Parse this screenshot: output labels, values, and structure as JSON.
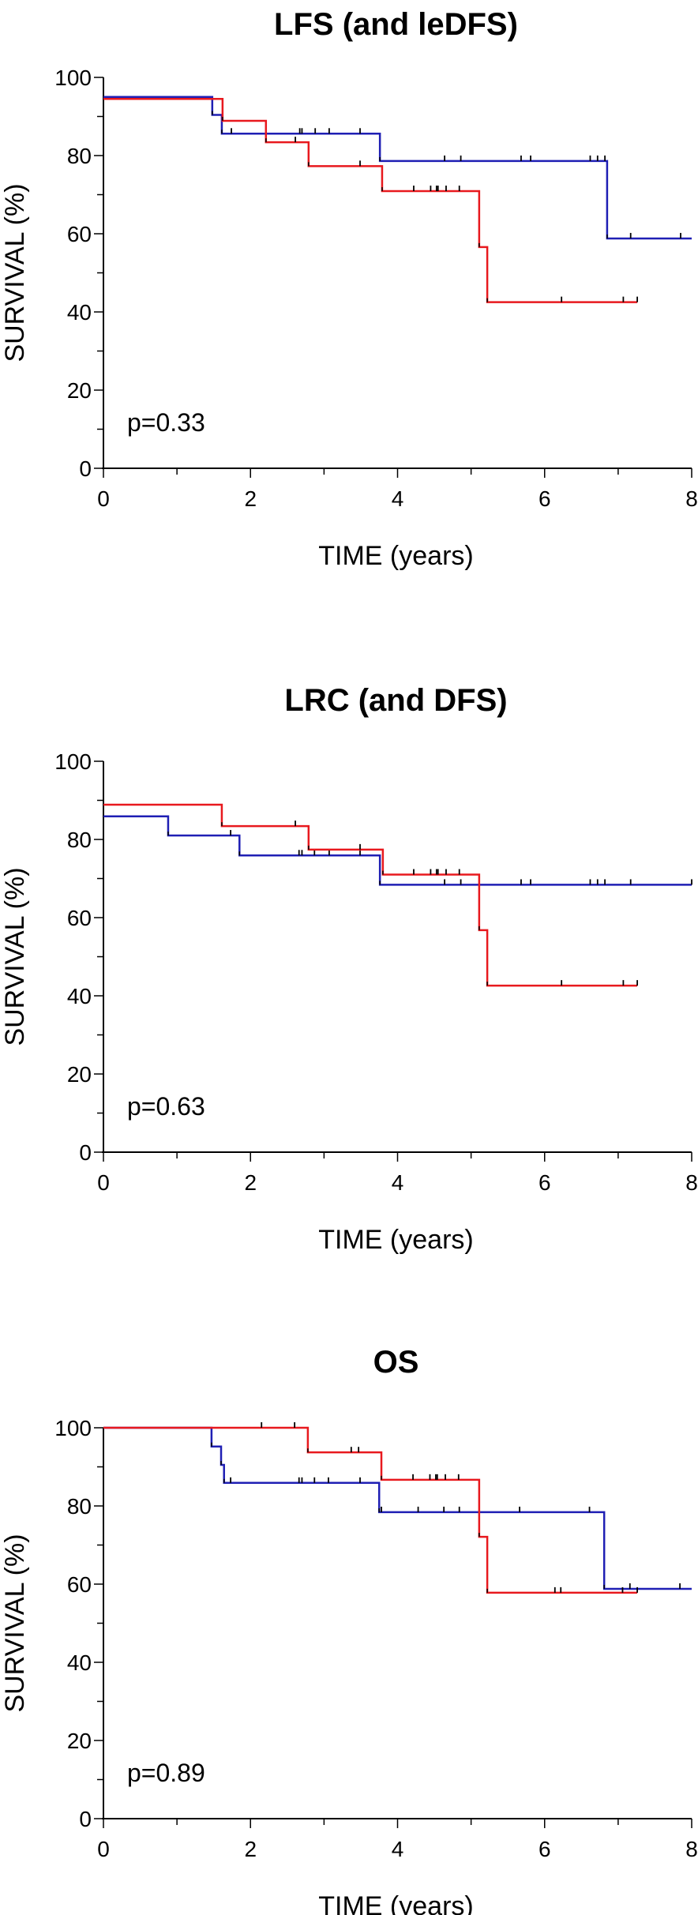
{
  "chart_data": [
    {
      "type": "line",
      "subtype": "kaplan-meier step",
      "title": "LFS (and leDFS)",
      "xlabel": "TIME (years)",
      "ylabel": "SURVIVAL (%)",
      "xlim": [
        0,
        8
      ],
      "ylim": [
        0,
        100
      ],
      "x_ticks": [
        "0",
        "2",
        "4",
        "6",
        "8"
      ],
      "y_ticks": [
        "0",
        "20",
        "40",
        "60",
        "80",
        "100"
      ],
      "x_minor_step": 1,
      "y_minor_step": 10,
      "grid": false,
      "annotation": "p=0.33",
      "series": [
        {
          "name": "blue group",
          "color": "#1f1fb4",
          "steps": [
            [
              0,
              95.0
            ],
            [
              1.48,
              90.4
            ],
            [
              1.61,
              85.6
            ],
            [
              3.76,
              78.6
            ],
            [
              6.85,
              58.8
            ]
          ],
          "end": 8.0,
          "censored": [
            1.74,
            2.67,
            2.7,
            2.88,
            3.07,
            3.49,
            4.64,
            4.86,
            5.68,
            5.81,
            6.62,
            6.72,
            6.82,
            7.17,
            7.85
          ]
        },
        {
          "name": "red group",
          "color": "#e8191e",
          "steps": [
            [
              0,
              94.5
            ],
            [
              1.62,
              88.9
            ],
            [
              2.21,
              83.4
            ],
            [
              2.79,
              77.3
            ],
            [
              3.79,
              70.9
            ],
            [
              5.11,
              56.6
            ],
            [
              5.22,
              42.5
            ]
          ],
          "end": 7.26,
          "censored": [
            2.61,
            3.49,
            4.22,
            4.45,
            4.53,
            4.55,
            4.66,
            4.84,
            6.23,
            7.07,
            7.26
          ]
        }
      ]
    },
    {
      "type": "line",
      "subtype": "kaplan-meier step",
      "title": "LRC (and DFS)",
      "xlabel": "TIME (years)",
      "ylabel": "SURVIVAL (%)",
      "xlim": [
        0,
        8
      ],
      "ylim": [
        0,
        100
      ],
      "x_ticks": [
        "0",
        "2",
        "4",
        "6",
        "8"
      ],
      "y_ticks": [
        "0",
        "20",
        "40",
        "60",
        "80",
        "100"
      ],
      "x_minor_step": 1,
      "y_minor_step": 10,
      "grid": false,
      "annotation": "p=0.63",
      "series": [
        {
          "name": "blue group",
          "color": "#1f1fb4",
          "steps": [
            [
              0,
              85.9
            ],
            [
              0.88,
              81.0
            ],
            [
              1.85,
              75.9
            ],
            [
              3.76,
              68.4
            ]
          ],
          "end": 8.0,
          "censored": [
            1.73,
            2.66,
            2.7,
            2.87,
            3.07,
            3.49,
            4.64,
            4.86,
            5.68,
            5.81,
            6.62,
            6.72,
            6.82,
            7.17,
            8.0
          ]
        },
        {
          "name": "red group",
          "color": "#e8191e",
          "steps": [
            [
              0,
              88.9
            ],
            [
              1.61,
              83.4
            ],
            [
              2.79,
              77.4
            ],
            [
              3.8,
              71.0
            ],
            [
              5.11,
              56.8
            ],
            [
              5.22,
              42.6
            ]
          ],
          "end": 7.26,
          "censored": [
            2.61,
            3.49,
            4.22,
            4.45,
            4.53,
            4.55,
            4.66,
            4.84,
            6.23,
            7.07,
            7.26
          ]
        }
      ]
    },
    {
      "type": "line",
      "subtype": "kaplan-meier step",
      "title": "OS",
      "xlabel": "TIME (years)",
      "ylabel": "SURVIVAL (%)",
      "xlim": [
        0,
        8
      ],
      "ylim": [
        0,
        100
      ],
      "x_ticks": [
        "0",
        "2",
        "4",
        "6",
        "8"
      ],
      "y_ticks": [
        "0",
        "20",
        "40",
        "60",
        "80",
        "100"
      ],
      "x_minor_step": 1,
      "y_minor_step": 10,
      "grid": false,
      "annotation": "p=0.89",
      "series": [
        {
          "name": "blue group",
          "color": "#1f1fb4",
          "steps": [
            [
              0,
              100
            ],
            [
              1.47,
              95.2
            ],
            [
              1.6,
              90.5
            ],
            [
              1.64,
              85.9
            ],
            [
              3.75,
              78.4
            ],
            [
              6.81,
              58.8
            ]
          ],
          "end": 8.0,
          "censored": [
            1.73,
            2.66,
            2.7,
            2.87,
            3.06,
            3.49,
            3.78,
            4.28,
            4.63,
            4.84,
            5.66,
            6.61,
            7.16,
            7.84
          ]
        },
        {
          "name": "red group",
          "color": "#e8191e",
          "steps": [
            [
              0,
              100
            ],
            [
              2.78,
              93.7
            ],
            [
              3.78,
              86.7
            ],
            [
              5.11,
              72.1
            ],
            [
              5.22,
              57.8
            ]
          ],
          "end": 7.26,
          "censored": [
            2.15,
            2.6,
            3.37,
            3.47,
            4.21,
            4.44,
            4.52,
            4.54,
            4.65,
            4.83,
            6.14,
            6.22,
            7.06,
            7.26
          ]
        }
      ]
    }
  ]
}
